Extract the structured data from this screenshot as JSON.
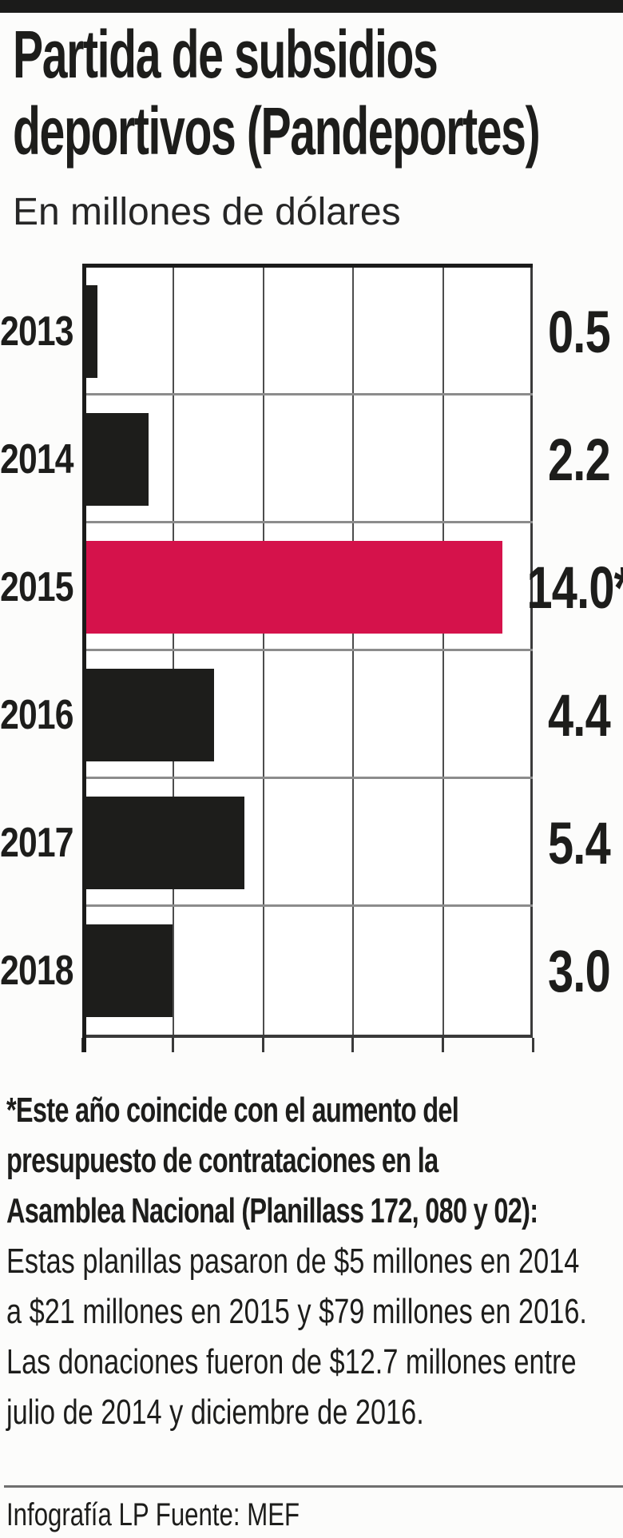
{
  "header": {
    "title_lines": [
      "Partida de subsidios",
      "deportivos (Pandeportes)"
    ],
    "subtitle": "En millones de dólares",
    "top_bar_color": "#1b1b1a"
  },
  "chart_data": {
    "type": "bar",
    "orientation": "horizontal",
    "title": "Partida de subsidios deportivos (Pandeportes)",
    "units_label": "En millones de dólares",
    "categories": [
      "2013",
      "2014",
      "2015",
      "2016",
      "2017",
      "2018"
    ],
    "values": [
      0.5,
      2.2,
      14.0,
      4.4,
      5.4,
      3.0
    ],
    "value_labels": [
      "0.5",
      "2.2",
      "14.0*",
      "4.4",
      "5.4",
      "3.0"
    ],
    "xaxis": {
      "min": 0,
      "max": 15,
      "gridline_step": 3
    },
    "grid": "on",
    "legend": "none",
    "bar_color": "#1d1d1b",
    "highlight": {
      "index": 2,
      "color": "#d5124b",
      "marker": "*"
    }
  },
  "footnote": {
    "bold_lines": [
      "*Este año coincide con el aumento del",
      "presupuesto de contrataciones en la",
      "Asamblea Nacional (Planillass 172, 080 y 02):"
    ],
    "regular_lines": [
      "Estas planillas pasaron de $5 millones en 2014",
      "a $21 millones en 2015 y $79 millones en 2016.",
      "Las donaciones fueron de $12.7 millones  entre",
      "julio de 2014 y diciembre de 2016."
    ]
  },
  "footer": {
    "credit": "Infografía LP Fuente: MEF"
  }
}
